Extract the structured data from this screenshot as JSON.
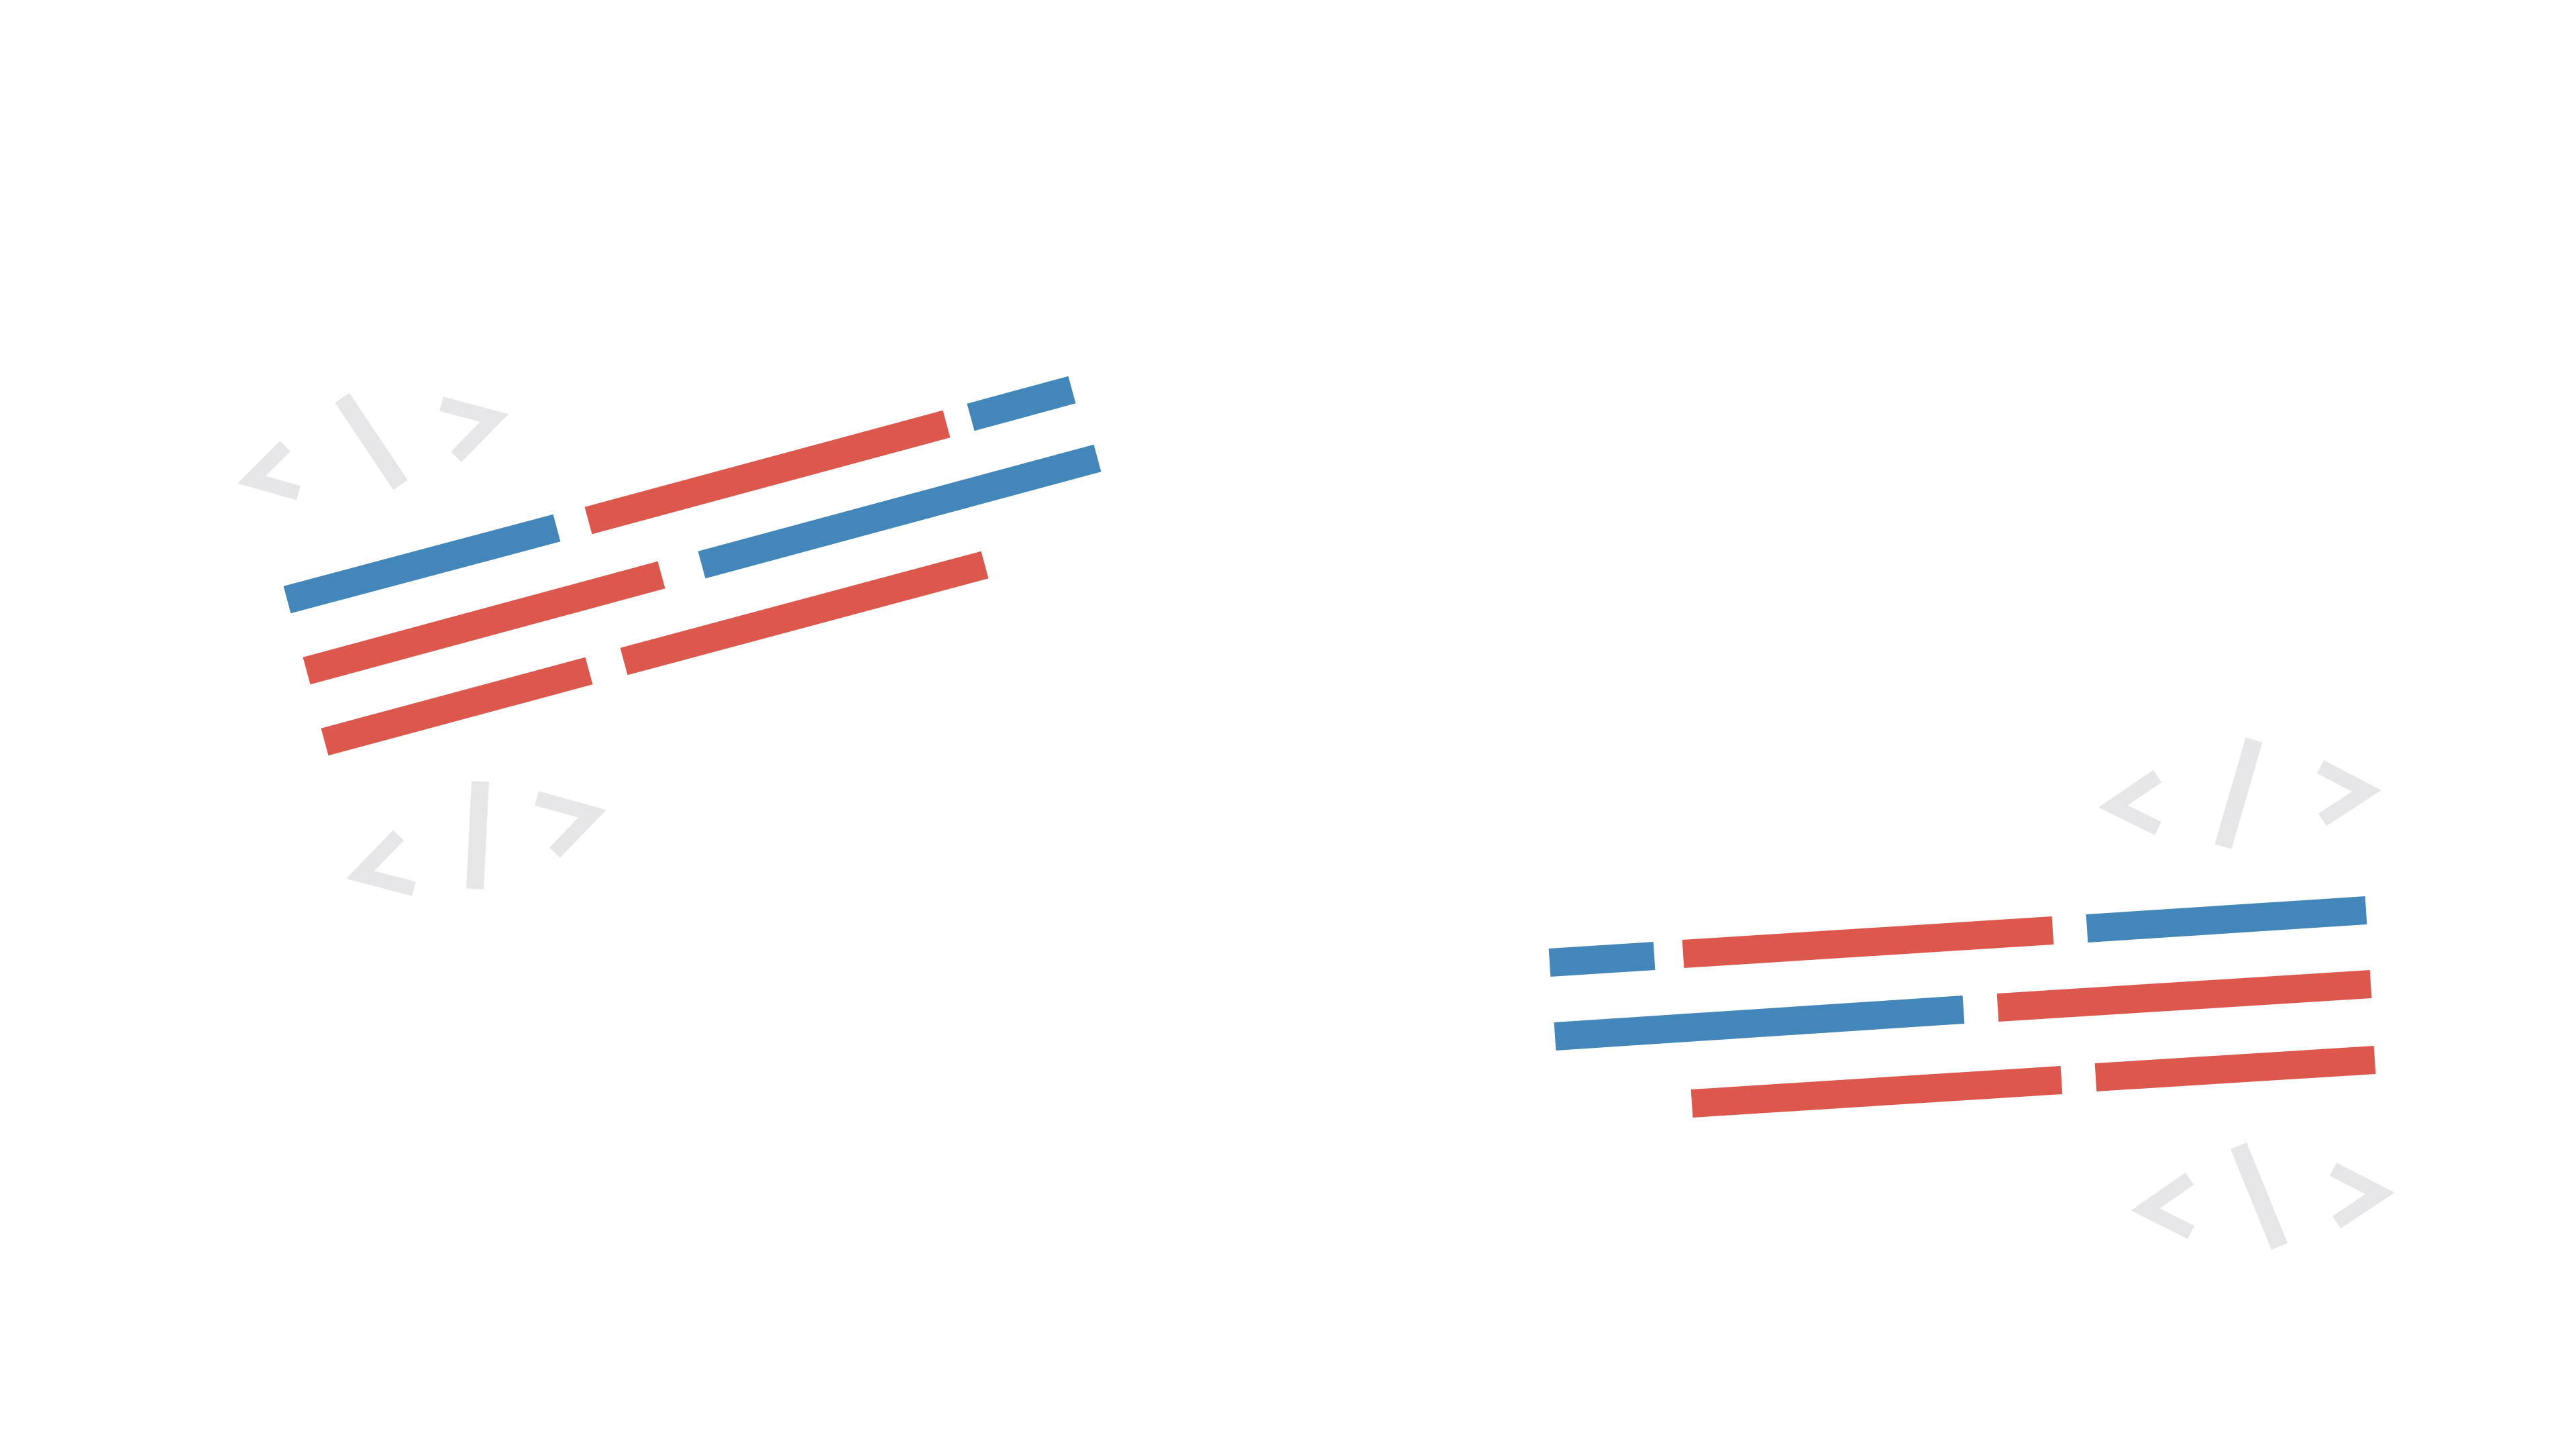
{
  "colors": {
    "background": "#ffffff",
    "blue": "#4386b9",
    "red": "#dc584d",
    "glyph": "#e6e6e8"
  },
  "illustrations": [
    {
      "name": "code-lines-left",
      "rows": [
        [
          "blue",
          "red",
          "blue"
        ],
        [
          "red",
          "blue"
        ],
        [
          "red",
          "red"
        ]
      ],
      "glyph_groups": 2
    },
    {
      "name": "code-lines-right",
      "rows": [
        [
          "blue",
          "red",
          "blue"
        ],
        [
          "blue",
          "red"
        ],
        [
          "red",
          "red"
        ]
      ],
      "glyph_groups": 2
    }
  ],
  "glyph_icon": "code-tag-icon"
}
